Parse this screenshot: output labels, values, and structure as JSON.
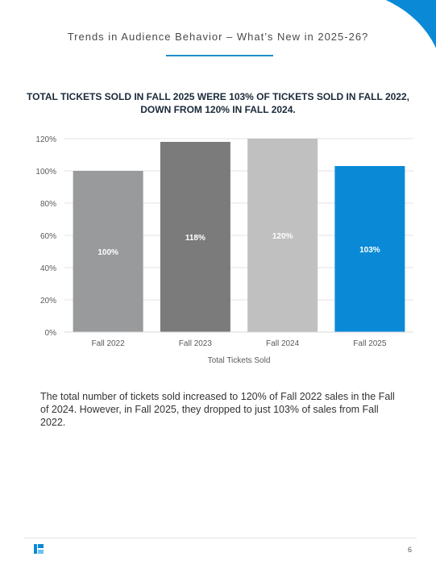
{
  "header": {
    "title": "Trends in Audience Behavior – What’s New in 2025-26?"
  },
  "colors": {
    "accent": "#0a8ad6",
    "bar_gray_1": "#999a9c",
    "bar_gray_2": "#7b7b7b",
    "bar_gray_3": "#c0c0c0",
    "bar_blue": "#0a8ad6"
  },
  "chart_data": {
    "type": "bar",
    "title": "TOTAL TICKETS SOLD IN FALL 2025 WERE 103% OF TICKETS SOLD IN FALL 2022, DOWN FROM 120% IN FALL 2024.",
    "categories": [
      "Fall 2022",
      "Fall 2023",
      "Fall 2024",
      "Fall 2025"
    ],
    "values": [
      100,
      118,
      120,
      103
    ],
    "data_labels": [
      "100%",
      "118%",
      "120%",
      "103%"
    ],
    "bar_colors": [
      "#999a9c",
      "#7b7b7b",
      "#c0c0c0",
      "#0a8ad6"
    ],
    "xlabel": "Total Tickets Sold",
    "ylabel": "",
    "ylim": [
      0,
      120
    ],
    "yticks": [
      "0%",
      "20%",
      "40%",
      "60%",
      "80%",
      "100%",
      "120%"
    ],
    "grid": true
  },
  "body": {
    "paragraph": "The total number of tickets sold increased to 120% of Fall 2022 sales in the Fall of 2024. However, in Fall 2025, they dropped to just 103% of sales from Fall 2022."
  },
  "footer": {
    "logo_icon": "brand-logo-icon",
    "page_number": "6"
  }
}
